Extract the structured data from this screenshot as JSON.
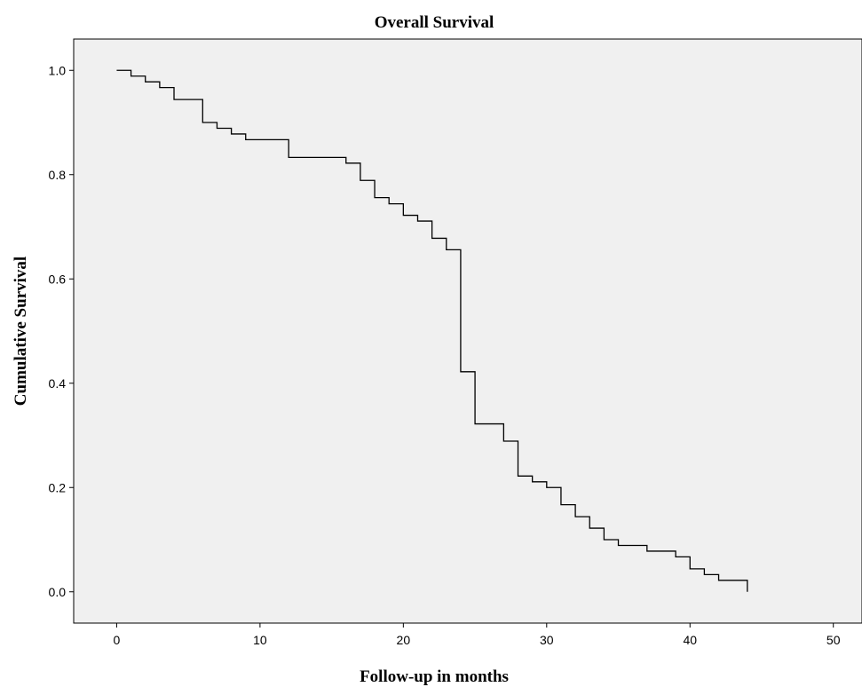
{
  "chart_data": {
    "type": "line",
    "subtype": "kaplan-meier-step",
    "title": "Overall Survival",
    "xlabel": "Follow-up in months",
    "ylabel": "Cumulative Survival",
    "xlim": [
      -3,
      52
    ],
    "ylim": [
      -0.06,
      1.06
    ],
    "xticks": [
      0,
      10,
      20,
      30,
      40,
      50
    ],
    "yticks": [
      0.0,
      0.2,
      0.4,
      0.6,
      0.8,
      1.0
    ],
    "xtick_labels": [
      "0",
      "10",
      "20",
      "30",
      "40",
      "50"
    ],
    "ytick_labels": [
      "0.0",
      "0.2",
      "0.4",
      "0.6",
      "0.8",
      "1.0"
    ],
    "grid": false,
    "legend": "none",
    "colors": {
      "plot_background": "#f0f0f0",
      "line": "#000000",
      "page_background": "#ffffff"
    },
    "series": [
      {
        "points": [
          [
            0,
            1.0
          ],
          [
            1,
            0.989
          ],
          [
            2,
            0.978
          ],
          [
            3,
            0.967
          ],
          [
            4,
            0.944
          ],
          [
            6,
            0.9
          ],
          [
            7,
            0.889
          ],
          [
            8,
            0.878
          ],
          [
            9,
            0.867
          ],
          [
            12,
            0.833
          ],
          [
            16,
            0.822
          ],
          [
            17,
            0.789
          ],
          [
            18,
            0.756
          ],
          [
            19,
            0.744
          ],
          [
            20,
            0.722
          ],
          [
            21,
            0.711
          ],
          [
            22,
            0.678
          ],
          [
            23,
            0.656
          ],
          [
            24,
            0.422
          ],
          [
            25,
            0.322
          ],
          [
            27,
            0.289
          ],
          [
            28,
            0.222
          ],
          [
            29,
            0.211
          ],
          [
            30,
            0.2
          ],
          [
            31,
            0.167
          ],
          [
            32,
            0.144
          ],
          [
            33,
            0.122
          ],
          [
            34,
            0.1
          ],
          [
            35,
            0.089
          ],
          [
            37,
            0.078
          ],
          [
            39,
            0.067
          ],
          [
            40,
            0.044
          ],
          [
            41,
            0.033
          ],
          [
            42,
            0.022
          ],
          [
            44,
            0.0
          ]
        ]
      }
    ]
  }
}
